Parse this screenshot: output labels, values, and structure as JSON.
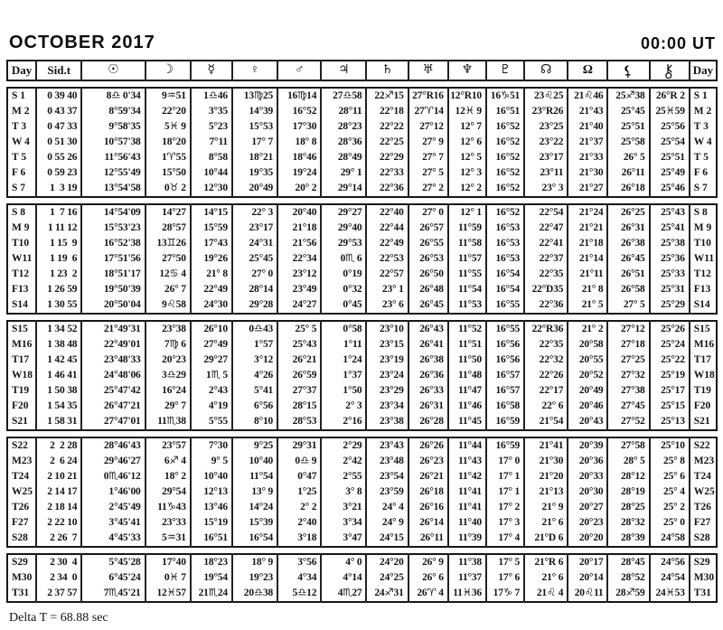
{
  "title": "OCTOBER 2017",
  "time_ref": "00:00 UT",
  "footer": "Delta T = 68.88 sec",
  "columns": [
    {
      "label": "Day",
      "name": "col-day-left"
    },
    {
      "label": "Sid.t",
      "name": "col-sidereal-time"
    },
    {
      "glyph": "☉",
      "name": "sun-icon"
    },
    {
      "glyph": "☽",
      "name": "moon-icon"
    },
    {
      "glyph": "☿",
      "name": "mercury-icon"
    },
    {
      "glyph": "♀",
      "name": "venus-icon"
    },
    {
      "glyph": "♂",
      "name": "mars-icon"
    },
    {
      "glyph": "♃",
      "name": "jupiter-icon"
    },
    {
      "glyph": "♄",
      "name": "saturn-icon"
    },
    {
      "glyph": "♅",
      "name": "uranus-icon"
    },
    {
      "glyph": "♆",
      "name": "neptune-icon"
    },
    {
      "glyph": "♇",
      "name": "pluto-icon"
    },
    {
      "glyph": "☊",
      "name": "true-node-icon"
    },
    {
      "glyph": "Ω",
      "name": "mean-node-icon"
    },
    {
      "glyph": "⚸",
      "name": "lilith-icon",
      "svg": "lilith"
    },
    {
      "glyph": "⚷",
      "name": "chiron-icon",
      "svg": "chiron"
    },
    {
      "label": "Day",
      "name": "col-day-right"
    }
  ],
  "weeks": [
    [
      [
        "S 1",
        "0 39 40",
        "8♎ 0'34",
        "9♒51",
        "1♎46",
        "13♍25",
        "16♍14",
        "27♎58",
        "22♐15",
        "27°R16",
        "12°R10",
        "16♑51",
        "23♌25",
        "21♌46",
        "25♐38",
        "26°R 2",
        "S 1"
      ],
      [
        "M 2",
        "0 43 37",
        "8°59'34",
        "22°20",
        "3°35",
        "14°39",
        "16°52",
        "28°11",
        "22°18",
        "27♈14",
        "12♓ 9",
        "16°51",
        "23°R26",
        "21°43",
        "25°45",
        "25♓59",
        "M 2"
      ],
      [
        "T 3",
        "0 47 33",
        "9°58'35",
        "5♓ 9",
        "5°23",
        "15°53",
        "17°30",
        "28°23",
        "22°22",
        "27°12",
        "12° 7",
        "16°52",
        "23°25",
        "21°40",
        "25°51",
        "25°56",
        "T 3"
      ],
      [
        "W 4",
        "0 51 30",
        "10°57'38",
        "18°20",
        "7°11",
        "17° 7",
        "18° 8",
        "28°36",
        "22°25",
        "27° 9",
        "12° 6",
        "16°52",
        "23°22",
        "21°37",
        "25°58",
        "25°54",
        "W 4"
      ],
      [
        "T 5",
        "0 55 26",
        "11°56'43",
        "1♈55",
        "8°58",
        "18°21",
        "18°46",
        "28°49",
        "22°29",
        "27° 7",
        "12° 5",
        "16°52",
        "23°17",
        "21°33",
        "26° 5",
        "25°51",
        "T 5"
      ],
      [
        "F 6",
        "0 59 23",
        "12°55'49",
        "15°50",
        "10°44",
        "19°35",
        "19°24",
        "29° 1",
        "22°33",
        "27° 5",
        "12° 3",
        "16°52",
        "23°11",
        "21°30",
        "26°11",
        "25°49",
        "F 6"
      ],
      [
        "S 7",
        "1  3 19",
        "13°54'58",
        "0♉ 2",
        "12°30",
        "20°49",
        "20° 2",
        "29°14",
        "22°36",
        "27° 2",
        "12° 2",
        "16°52",
        "23° 3",
        "21°27",
        "26°18",
        "25°46",
        "S 7"
      ]
    ],
    [
      [
        "S 8",
        "1  7 16",
        "14°54'09",
        "14°27",
        "14°15",
        "22° 3",
        "20°40",
        "29°27",
        "22°40",
        "27° 0",
        "12° 1",
        "16°52",
        "22°54",
        "21°24",
        "26°25",
        "25°43",
        "S 8"
      ],
      [
        "M 9",
        "1 11 12",
        "15°53'23",
        "28°57",
        "15°59",
        "23°17",
        "21°18",
        "29°40",
        "22°44",
        "26°57",
        "11°59",
        "16°53",
        "22°47",
        "21°21",
        "26°31",
        "25°41",
        "M 9"
      ],
      [
        "T10",
        "1 15  9",
        "16°52'38",
        "13♊26",
        "17°43",
        "24°31",
        "21°56",
        "29°53",
        "22°49",
        "26°55",
        "11°58",
        "16°53",
        "22°41",
        "21°18",
        "26°38",
        "25°38",
        "T10"
      ],
      [
        "W11",
        "1 19  6",
        "17°51'56",
        "27°50",
        "19°26",
        "25°45",
        "22°34",
        "0♏ 6",
        "22°53",
        "26°53",
        "11°57",
        "16°53",
        "22°37",
        "21°14",
        "26°45",
        "25°36",
        "W11"
      ],
      [
        "T12",
        "1 23  2",
        "18°51'17",
        "12♋ 4",
        "21° 8",
        "27° 0",
        "23°12",
        "0°19",
        "22°57",
        "26°50",
        "11°55",
        "16°54",
        "22°35",
        "21°11",
        "26°51",
        "25°33",
        "T12"
      ],
      [
        "F13",
        "1 26 59",
        "19°50'39",
        "26° 7",
        "22°49",
        "28°14",
        "23°49",
        "0°32",
        "23° 1",
        "26°48",
        "11°54",
        "16°54",
        "22°D35",
        "21° 8",
        "26°58",
        "25°31",
        "F13"
      ],
      [
        "S14",
        "1 30 55",
        "20°50'04",
        "9♌58",
        "24°30",
        "29°28",
        "24°27",
        "0°45",
        "23° 6",
        "26°45",
        "11°53",
        "16°55",
        "22°36",
        "21° 5",
        "27° 5",
        "25°29",
        "S14"
      ]
    ],
    [
      [
        "S15",
        "1 34 52",
        "21°49'31",
        "23°38",
        "26°10",
        "0♎43",
        "25° 5",
        "0°58",
        "23°10",
        "26°43",
        "11°52",
        "16°55",
        "22°R36",
        "21° 2",
        "27°12",
        "25°26",
        "S15"
      ],
      [
        "M16",
        "1 38 48",
        "22°49'01",
        "7♍ 6",
        "27°49",
        "1°57",
        "25°43",
        "1°11",
        "23°15",
        "26°41",
        "11°51",
        "16°56",
        "22°35",
        "20°58",
        "27°18",
        "25°24",
        "M16"
      ],
      [
        "T17",
        "1 42 45",
        "23°48'33",
        "20°23",
        "29°27",
        "3°12",
        "26°21",
        "1°24",
        "23°19",
        "26°38",
        "11°50",
        "16°56",
        "22°32",
        "20°55",
        "27°25",
        "25°22",
        "T17"
      ],
      [
        "W18",
        "1 46 41",
        "24°48'06",
        "3♎29",
        "1♏ 5",
        "4°26",
        "26°59",
        "1°37",
        "23°24",
        "26°36",
        "11°48",
        "16°57",
        "22°26",
        "20°52",
        "27°32",
        "25°19",
        "W18"
      ],
      [
        "T19",
        "1 50 38",
        "25°47'42",
        "16°24",
        "2°43",
        "5°41",
        "27°37",
        "1°50",
        "23°29",
        "26°33",
        "11°47",
        "16°57",
        "22°17",
        "20°49",
        "27°38",
        "25°17",
        "T19"
      ],
      [
        "F20",
        "1 54 35",
        "26°47'21",
        "29° 7",
        "4°19",
        "6°56",
        "28°15",
        "2° 3",
        "23°34",
        "26°31",
        "11°46",
        "16°58",
        "22° 6",
        "20°46",
        "27°45",
        "25°15",
        "F20"
      ],
      [
        "S21",
        "1 58 31",
        "27°47'01",
        "11♏38",
        "5°55",
        "8°10",
        "28°53",
        "2°16",
        "23°38",
        "26°28",
        "11°45",
        "16°59",
        "21°54",
        "20°43",
        "27°52",
        "25°13",
        "S21"
      ]
    ],
    [
      [
        "S22",
        "2  2 28",
        "28°46'43",
        "23°57",
        "7°30",
        "9°25",
        "29°31",
        "2°29",
        "23°43",
        "26°26",
        "11°44",
        "16°59",
        "21°41",
        "20°39",
        "27°58",
        "25°10",
        "S22"
      ],
      [
        "M23",
        "2  6 24",
        "29°46'27",
        "6♐ 4",
        "9° 5",
        "10°40",
        "0♎ 9",
        "2°42",
        "23°48",
        "26°23",
        "11°43",
        "17° 0",
        "21°30",
        "20°36",
        "28° 5",
        "25° 8",
        "M23"
      ],
      [
        "T24",
        "2 10 21",
        "0♏46'12",
        "18° 2",
        "10°40",
        "11°54",
        "0°47",
        "2°55",
        "23°54",
        "26°21",
        "11°42",
        "17° 1",
        "21°20",
        "20°33",
        "28°12",
        "25° 6",
        "T24"
      ],
      [
        "W25",
        "2 14 17",
        "1°46'00",
        "29°54",
        "12°13",
        "13° 9",
        "1°25",
        "3° 8",
        "23°59",
        "26°18",
        "11°41",
        "17° 1",
        "21°13",
        "20°30",
        "28°19",
        "25° 4",
        "W25"
      ],
      [
        "T26",
        "2 18 14",
        "2°45'49",
        "11♑43",
        "13°46",
        "14°24",
        "2° 2",
        "3°21",
        "24° 4",
        "26°16",
        "11°41",
        "17° 2",
        "21° 9",
        "20°27",
        "28°25",
        "25° 2",
        "T26"
      ],
      [
        "F27",
        "2 22 10",
        "3°45'41",
        "23°33",
        "15°19",
        "15°39",
        "2°40",
        "3°34",
        "24° 9",
        "26°14",
        "11°40",
        "17° 3",
        "21° 6",
        "20°23",
        "28°32",
        "25° 0",
        "F27"
      ],
      [
        "S28",
        "2 26  7",
        "4°45'33",
        "5♒31",
        "16°51",
        "16°54",
        "3°18",
        "3°47",
        "24°15",
        "26°11",
        "11°39",
        "17° 4",
        "21°D 6",
        "20°20",
        "28°39",
        "24°58",
        "S28"
      ]
    ],
    [
      [
        "S29",
        "2 30  4",
        "5°45'28",
        "17°40",
        "18°23",
        "18° 9",
        "3°56",
        "4° 0",
        "24°20",
        "26° 9",
        "11°38",
        "17° 5",
        "21°R 6",
        "20°17",
        "28°45",
        "24°56",
        "S29"
      ],
      [
        "M30",
        "2 34  0",
        "6°45'24",
        "0♓ 7",
        "19°54",
        "19°23",
        "4°34",
        "4°14",
        "24°25",
        "26° 6",
        "11°37",
        "17° 6",
        "21° 6",
        "20°14",
        "28°52",
        "24°54",
        "M30"
      ],
      [
        "T31",
        "2 37 57",
        "7♏45'21",
        "12♓57",
        "21♏24",
        "20♎38",
        "5♎12",
        "4♏27",
        "24♐31",
        "26♈ 4",
        "11♓36",
        "17♑ 7",
        "21♌ 4",
        "20♌11",
        "28♐59",
        "24♓53",
        "T31"
      ]
    ]
  ]
}
